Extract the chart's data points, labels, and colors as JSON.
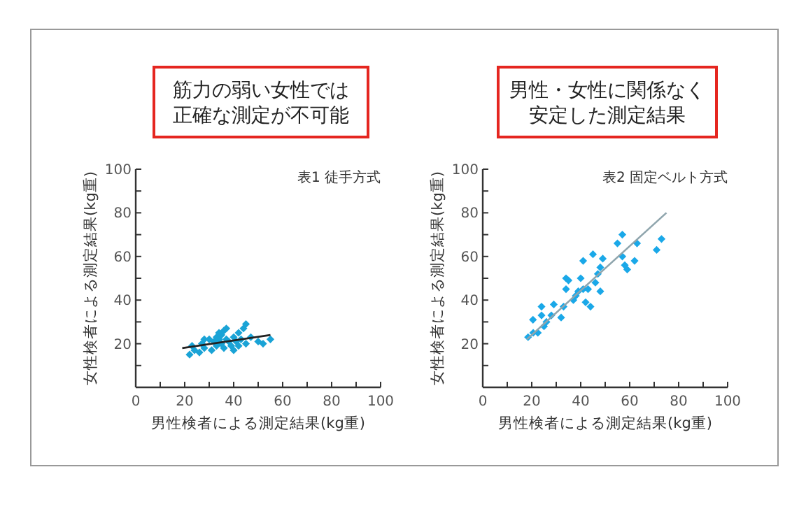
{
  "chart_data": [
    {
      "type": "scatter",
      "title": "表1 徒手方式",
      "xlabel": "男性検者による測定結果(kg重)",
      "ylabel": "女性検者による測定結果(kg重)",
      "annotations": [
        "筋力の弱い女性では",
        "正確な測定が不可能"
      ],
      "xlim": [
        0,
        100
      ],
      "ylim": [
        0,
        100
      ],
      "xticks": [
        0,
        {
          "value": 10,
          "label": null
        },
        20,
        {
          "value": 30,
          "label": null
        },
        40,
        {
          "value": 50,
          "label": null
        },
        60,
        {
          "value": 70,
          "label": null
        },
        80,
        {
          "value": 90,
          "label": null
        },
        100
      ],
      "yticks": [
        {
          "value": 0,
          "label": null
        },
        {
          "value": 10,
          "label": null
        },
        20,
        {
          "value": 30,
          "label": null
        },
        40,
        {
          "value": 50,
          "label": null
        },
        60,
        {
          "value": 70,
          "label": null
        },
        80,
        {
          "value": 90,
          "label": null
        },
        100
      ],
      "grid": false,
      "marker": "diamond",
      "series": [
        {
          "color": "#1aa3d6",
          "x": [
            22,
            23,
            24,
            26,
            27,
            28,
            28,
            30,
            31,
            32,
            33,
            33,
            34,
            35,
            35,
            36,
            36,
            37,
            37,
            38,
            39,
            40,
            40,
            41,
            42,
            42,
            43,
            44,
            45,
            45,
            47,
            50,
            52,
            55,
            30,
            34
          ],
          "values": [
            15,
            19,
            17,
            16,
            20,
            18,
            22,
            null,
            17,
            21,
            19,
            23,
            22,
            20,
            24,
            18,
            26,
            22,
            27,
            21,
            19,
            23,
            17,
            21,
            25,
            19,
            22,
            27,
            29,
            20,
            23,
            21,
            20,
            22,
            22,
            25
          ]
        },
        {
          "type": "line",
          "color": "#222222",
          "marker": "none",
          "x": [
            19,
            55
          ],
          "values": [
            18,
            24
          ]
        }
      ]
    },
    {
      "type": "scatter",
      "title": "表2 固定ベルト方式",
      "xlabel": "男性検者による測定結果(kg重)",
      "ylabel": "女性検者による測定結果(kg重)",
      "annotations": [
        "男性・女性に関係なく",
        "安定した測定結果"
      ],
      "xlim": [
        0,
        100
      ],
      "ylim": [
        0,
        100
      ],
      "xticks": [
        0,
        {
          "value": 10,
          "label": null
        },
        20,
        {
          "value": 30,
          "label": null
        },
        40,
        {
          "value": 50,
          "label": null
        },
        60,
        {
          "value": 70,
          "label": null
        },
        80,
        {
          "value": 90,
          "label": null
        },
        100
      ],
      "yticks": [
        {
          "value": 0,
          "label": null
        },
        {
          "value": 10,
          "label": null
        },
        20,
        {
          "value": 30,
          "label": null
        },
        40,
        {
          "value": 50,
          "label": null
        },
        60,
        {
          "value": 70,
          "label": null
        },
        80,
        {
          "value": 90,
          "label": null
        },
        100
      ],
      "grid": false,
      "marker": "diamond",
      "series": [
        {
          "color": "#1aa8e8",
          "x": [
            18.5,
            20.6,
            22.5,
            20.5,
            24,
            24,
            25,
            26,
            27,
            28,
            29,
            32,
            33,
            34,
            34,
            35,
            37,
            38,
            39,
            40,
            41,
            41,
            42,
            43,
            44,
            45,
            46,
            47,
            48,
            48,
            49,
            55,
            57,
            57,
            58,
            59,
            63,
            62,
            71,
            73
          ],
          "values": [
            23,
            25,
            25,
            31,
            37,
            33,
            28,
            30,
            null,
            33,
            38,
            32,
            37,
            50,
            45,
            49,
            40,
            42,
            44,
            50,
            58,
            45,
            39,
            45,
            37,
            61,
            48,
            52,
            55,
            44,
            59,
            66,
            70,
            60,
            56,
            54,
            66,
            58,
            63,
            68
          ]
        },
        {
          "type": "line",
          "color": "#8fa5ad",
          "marker": "none",
          "x": [
            18,
            75
          ],
          "values": [
            22,
            80
          ]
        }
      ]
    }
  ]
}
